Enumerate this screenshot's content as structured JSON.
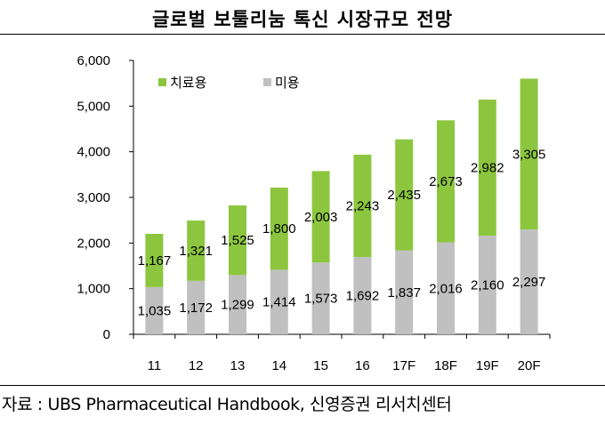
{
  "title": "글로벌 보툴리눔 톡신 시장규모 전망",
  "source": "자료 : UBS Pharmaceutical Handbook, 신영증권 리서치센터",
  "colors": {
    "therapeutic": "#8cc63f",
    "cosmetic": "#c0c0c0",
    "axis": "#000000"
  },
  "chart_data": {
    "type": "bar",
    "stacked": true,
    "title": "글로벌 보툴리눔 톡신 시장규모 전망",
    "categories": [
      "11",
      "12",
      "13",
      "14",
      "15",
      "16",
      "17F",
      "18F",
      "19F",
      "20F"
    ],
    "series": [
      {
        "name": "미용",
        "color": "#c0c0c0",
        "values": [
          1035,
          1172,
          1299,
          1414,
          1573,
          1692,
          1837,
          2016,
          2160,
          2297
        ],
        "labels": [
          "1,035",
          "1,172",
          "1,299",
          "1,414",
          "1,573",
          "1,692",
          "1,837",
          "2,016",
          "2,160",
          "2,297"
        ]
      },
      {
        "name": "치료용",
        "color": "#8cc63f",
        "values": [
          1167,
          1321,
          1525,
          1800,
          2003,
          2243,
          2435,
          2673,
          2982,
          3305
        ],
        "labels": [
          "1,167",
          "1,321",
          "1,525",
          "1,800",
          "2,003",
          "2,243",
          "2,435",
          "2,673",
          "2,982",
          "3,305"
        ]
      }
    ],
    "ylim": [
      0,
      6000
    ],
    "yticks": [
      0,
      1000,
      2000,
      3000,
      4000,
      5000,
      6000
    ],
    "ytick_labels": [
      "0",
      "1,000",
      "2,000",
      "3,000",
      "4,000",
      "5,000",
      "6,000"
    ],
    "legend": [
      {
        "name": "치료용",
        "color": "#8cc63f"
      },
      {
        "name": "미용",
        "color": "#c0c0c0"
      }
    ],
    "legend_position": "top-left",
    "xlabel": "",
    "ylabel": "",
    "grid": false
  }
}
